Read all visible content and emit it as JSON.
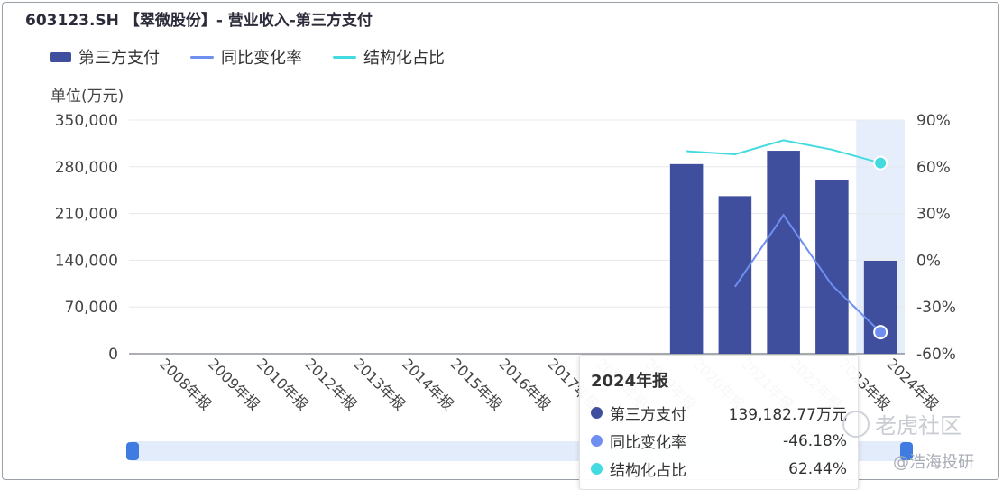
{
  "title": "603123.SH 【翠微股份】- 营业收入-第三方支付",
  "chart_data": {
    "type": "bar",
    "categories": [
      "2008年报",
      "2009年报",
      "2010年报",
      "2012年报",
      "2013年报",
      "2014年报",
      "2015年报",
      "2016年报",
      "2017年报",
      "2018年报",
      "2019年报",
      "2020年报",
      "2021年报",
      "2022年报",
      "2023年报",
      "2024年报"
    ],
    "unit_label": "单位(万元)",
    "ylim_left": [
      0,
      350000
    ],
    "yticks_left": [
      "350,000",
      "280,000",
      "210,000",
      "140,000",
      "70,000",
      "0"
    ],
    "ylim_right": [
      -60,
      90
    ],
    "yticks_right": [
      "90%",
      "60%",
      "30%",
      "0%",
      "-30%",
      "-60%"
    ],
    "series": [
      {
        "name": "第三方支付",
        "type": "bar",
        "axis": "left",
        "color": "#3f4f9e",
        "values": [
          null,
          null,
          null,
          null,
          null,
          null,
          null,
          null,
          null,
          null,
          null,
          284000,
          236000,
          304000,
          260000,
          139182.77
        ]
      },
      {
        "name": "同比变化率",
        "type": "line",
        "axis": "right",
        "color": "#6f8ff0",
        "values": [
          null,
          null,
          null,
          null,
          null,
          null,
          null,
          null,
          null,
          null,
          null,
          null,
          -17,
          29,
          -16,
          -46.18
        ]
      },
      {
        "name": "结构化占比",
        "type": "line",
        "axis": "right",
        "color": "#44dbe0",
        "values": [
          null,
          null,
          null,
          null,
          null,
          null,
          null,
          null,
          null,
          null,
          null,
          70,
          68,
          77,
          71,
          62.44
        ]
      }
    ],
    "highlight_index": 15,
    "legend_position": "top-left",
    "grid": true
  },
  "tooltip": {
    "title": "2024年报",
    "rows": [
      {
        "name": "第三方支付",
        "value": "139,182.77万元",
        "color": "#3f4f9e"
      },
      {
        "name": "同比变化率",
        "value": "-46.18%",
        "color": "#6f8ff0"
      },
      {
        "name": "结构化占比",
        "value": "62.44%",
        "color": "#44dbe0"
      }
    ]
  },
  "watermarks": {
    "tiger": "老虎社区",
    "author": "@浩海投研"
  }
}
